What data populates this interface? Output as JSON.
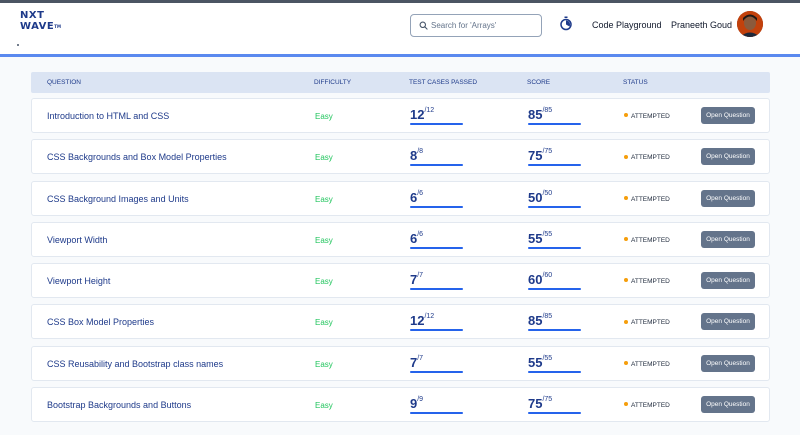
{
  "header": {
    "logo_line1": "NXT",
    "logo_line2": "WAVE",
    "logo_tm": "TM",
    "search_placeholder": "Search for 'Arrays'",
    "code_playground": "Code Playground",
    "user_name": "Praneeth Goud",
    "icons": {
      "search": "search-icon",
      "timer": "timer-icon",
      "avatar": "avatar"
    }
  },
  "table": {
    "headers": [
      "QUESTION",
      "DIFFICULTY",
      "TEST CASES PASSED",
      "SCORE",
      "STATUS"
    ],
    "button_label": "Open Question",
    "colors": {
      "easy": "#22c55e",
      "attempted_dot": "#f59e0b",
      "accent": "#2563eb",
      "button": "#64748b"
    },
    "rows": [
      {
        "title": "Introduction to HTML and CSS",
        "difficulty": "Easy",
        "tests_passed": "12",
        "tests_total": "/12",
        "score": "85",
        "score_total": "/85",
        "status": "ATTEMPTED"
      },
      {
        "title": "CSS Backgrounds and Box Model Properties",
        "difficulty": "Easy",
        "tests_passed": "8",
        "tests_total": "/8",
        "score": "75",
        "score_total": "/75",
        "status": "ATTEMPTED"
      },
      {
        "title": "CSS Background Images and Units",
        "difficulty": "Easy",
        "tests_passed": "6",
        "tests_total": "/6",
        "score": "50",
        "score_total": "/50",
        "status": "ATTEMPTED"
      },
      {
        "title": "Viewport Width",
        "difficulty": "Easy",
        "tests_passed": "6",
        "tests_total": "/6",
        "score": "55",
        "score_total": "/55",
        "status": "ATTEMPTED"
      },
      {
        "title": "Viewport Height",
        "difficulty": "Easy",
        "tests_passed": "7",
        "tests_total": "/7",
        "score": "60",
        "score_total": "/60",
        "status": "ATTEMPTED"
      },
      {
        "title": "CSS Box Model Properties",
        "difficulty": "Easy",
        "tests_passed": "12",
        "tests_total": "/12",
        "score": "85",
        "score_total": "/85",
        "status": "ATTEMPTED"
      },
      {
        "title": "CSS Reusability and Bootstrap class names",
        "difficulty": "Easy",
        "tests_passed": "7",
        "tests_total": "/7",
        "score": "55",
        "score_total": "/55",
        "status": "ATTEMPTED"
      },
      {
        "title": "Bootstrap Backgrounds and Buttons",
        "difficulty": "Easy",
        "tests_passed": "9",
        "tests_total": "/9",
        "score": "75",
        "score_total": "/75",
        "status": "ATTEMPTED"
      }
    ]
  }
}
